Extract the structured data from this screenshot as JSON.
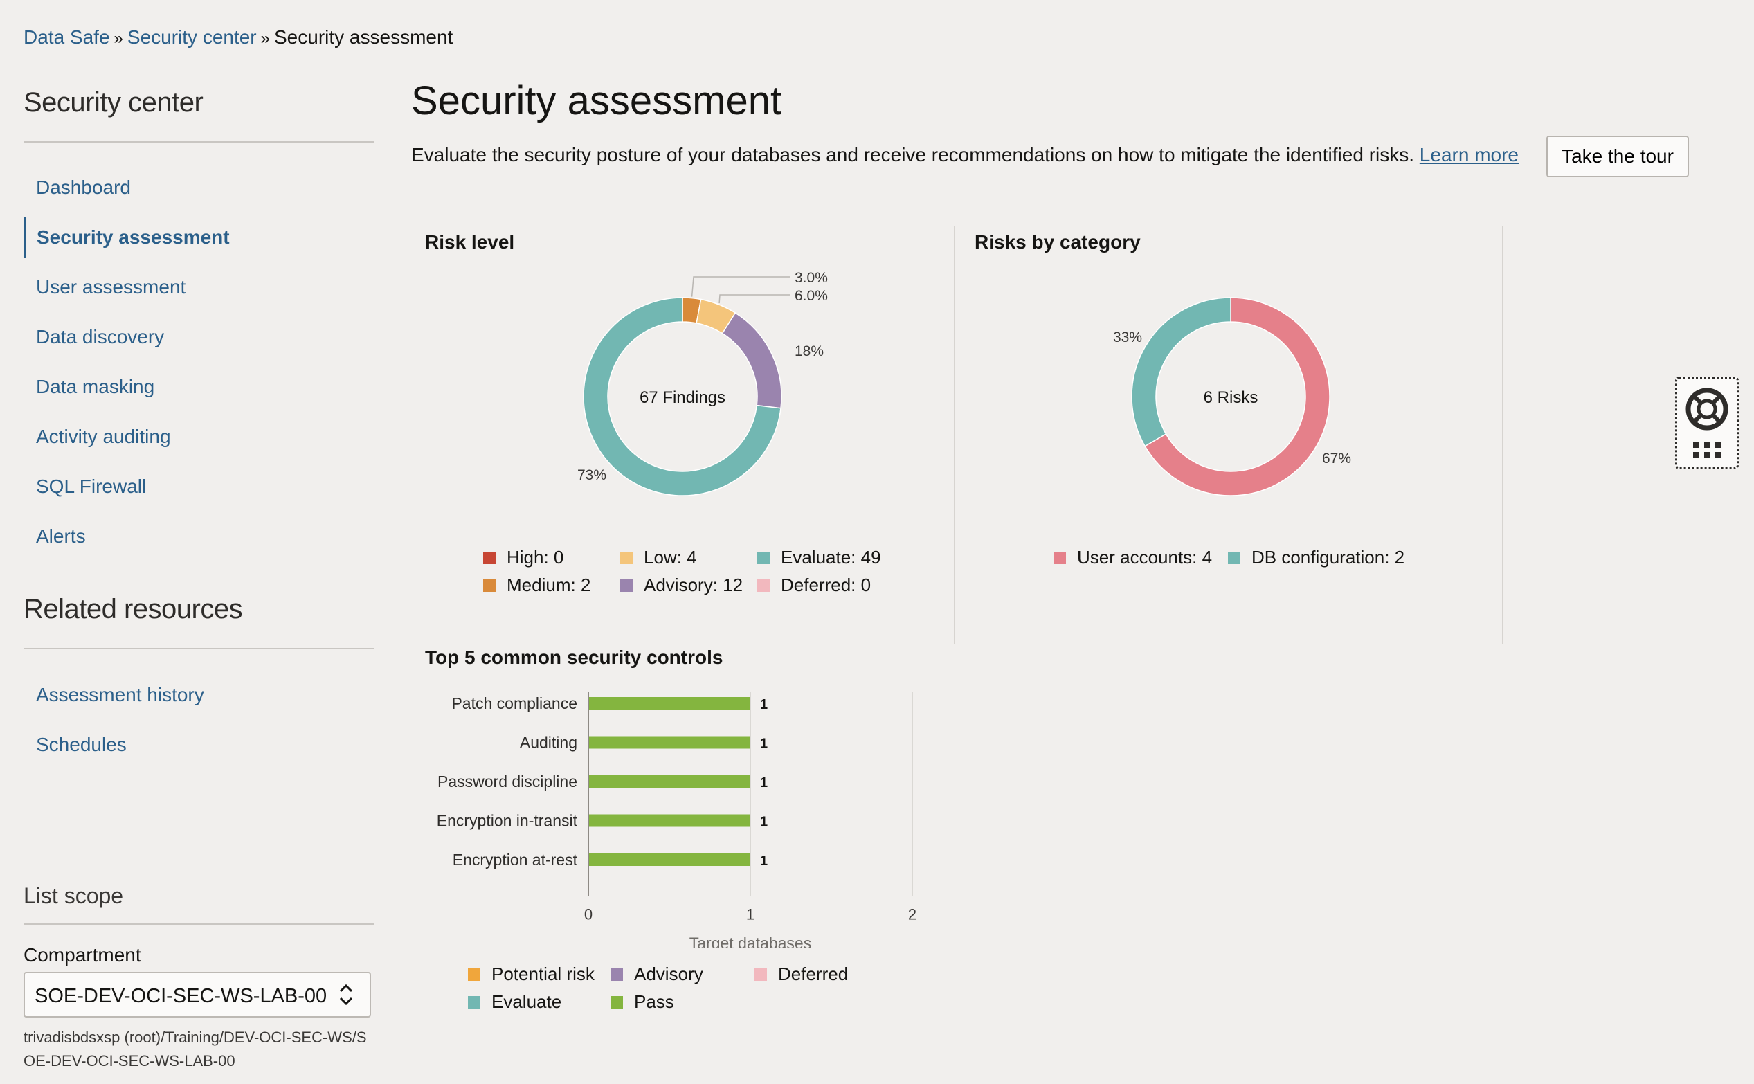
{
  "breadcrumb": {
    "items": [
      "Data Safe",
      "Security center"
    ],
    "separator": "»",
    "current": "Security assessment"
  },
  "sidebar": {
    "heading": "Security center",
    "items": [
      {
        "label": "Dashboard"
      },
      {
        "label": "Security assessment",
        "selected": true
      },
      {
        "label": "User assessment"
      },
      {
        "label": "Data discovery"
      },
      {
        "label": "Data masking"
      },
      {
        "label": "Activity auditing"
      },
      {
        "label": "SQL Firewall"
      },
      {
        "label": "Alerts"
      }
    ],
    "related_heading": "Related resources",
    "related_items": [
      {
        "label": "Assessment history"
      },
      {
        "label": "Schedules"
      }
    ],
    "list_scope": {
      "heading": "List scope",
      "compartment_label": "Compartment",
      "compartment_value": "SOE-DEV-OCI-SEC-WS-LAB-00",
      "compartment_path": "trivadisbdsxsp (root)/Training/DEV-OCI-SEC-WS/SOE-DEV-OCI-SEC-WS-LAB-00"
    }
  },
  "main": {
    "title": "Security assessment",
    "description": "Evaluate the security posture of your databases and receive recommendations on how to mitigate the identified risks.",
    "learn_more": "Learn more",
    "tour_button": "Take the tour"
  },
  "risk_level": {
    "title": "Risk level",
    "center_label": "67 Findings",
    "legend": [
      {
        "label": "High: 0",
        "color": "#c74634"
      },
      {
        "label": "Low: 4",
        "color": "#f4c57b"
      },
      {
        "label": "Evaluate: 49",
        "color": "#72b7b2"
      },
      {
        "label": "Medium: 2",
        "color": "#d98a3a"
      },
      {
        "label": "Advisory: 12",
        "color": "#9a84ae"
      },
      {
        "label": "Deferred: 0",
        "color": "#f2b8be"
      }
    ]
  },
  "risks_by_category": {
    "title": "Risks by category",
    "center_label": "6 Risks",
    "legend": [
      {
        "label": "User accounts: 4",
        "color": "#e5808a"
      },
      {
        "label": "DB configuration: 2",
        "color": "#72b7b2"
      }
    ]
  },
  "top_controls": {
    "title": "Top 5 common security controls",
    "legend": [
      {
        "label": "Potential risk",
        "color": "#f0a63c"
      },
      {
        "label": "Advisory",
        "color": "#9a84ae"
      },
      {
        "label": "Deferred",
        "color": "#f2b8be"
      },
      {
        "label": "Evaluate",
        "color": "#72b7b2"
      },
      {
        "label": "Pass",
        "color": "#84b53f"
      }
    ]
  },
  "chart_data": [
    {
      "type": "pie",
      "title": "Risk level",
      "donut": true,
      "center_label": "67 Findings",
      "slices": [
        {
          "label": "High",
          "value": 0,
          "percent_label": "",
          "color": "#c74634"
        },
        {
          "label": "Medium",
          "value": 2,
          "percent_label": "3.0%",
          "color": "#d98a3a"
        },
        {
          "label": "Low",
          "value": 4,
          "percent_label": "6.0%",
          "color": "#f4c57b"
        },
        {
          "label": "Advisory",
          "value": 12,
          "percent_label": "18%",
          "color": "#9a84ae"
        },
        {
          "label": "Evaluate",
          "value": 49,
          "percent_label": "73%",
          "color": "#72b7b2"
        },
        {
          "label": "Deferred",
          "value": 0,
          "percent_label": "",
          "color": "#f2b8be"
        }
      ]
    },
    {
      "type": "pie",
      "title": "Risks by category",
      "donut": true,
      "center_label": "6 Risks",
      "slices": [
        {
          "label": "User accounts",
          "value": 4,
          "percent_label": "67%",
          "color": "#e5808a"
        },
        {
          "label": "DB configuration",
          "value": 2,
          "percent_label": "33%",
          "color": "#72b7b2"
        }
      ]
    },
    {
      "type": "bar",
      "orientation": "horizontal",
      "title": "Top 5 common security controls",
      "categories": [
        "Patch compliance",
        "Auditing",
        "Password discipline",
        "Encryption in-transit",
        "Encryption at-rest"
      ],
      "series": [
        {
          "name": "Pass",
          "values": [
            1,
            1,
            1,
            1,
            1
          ],
          "color": "#84b53f"
        }
      ],
      "data_labels": [
        "1",
        "1",
        "1",
        "1",
        "1"
      ],
      "xlabel": "Target databases",
      "xlim": [
        0,
        2
      ],
      "xticks": [
        "0",
        "1",
        "2"
      ],
      "grid": true,
      "legend_position": "bottom"
    }
  ]
}
